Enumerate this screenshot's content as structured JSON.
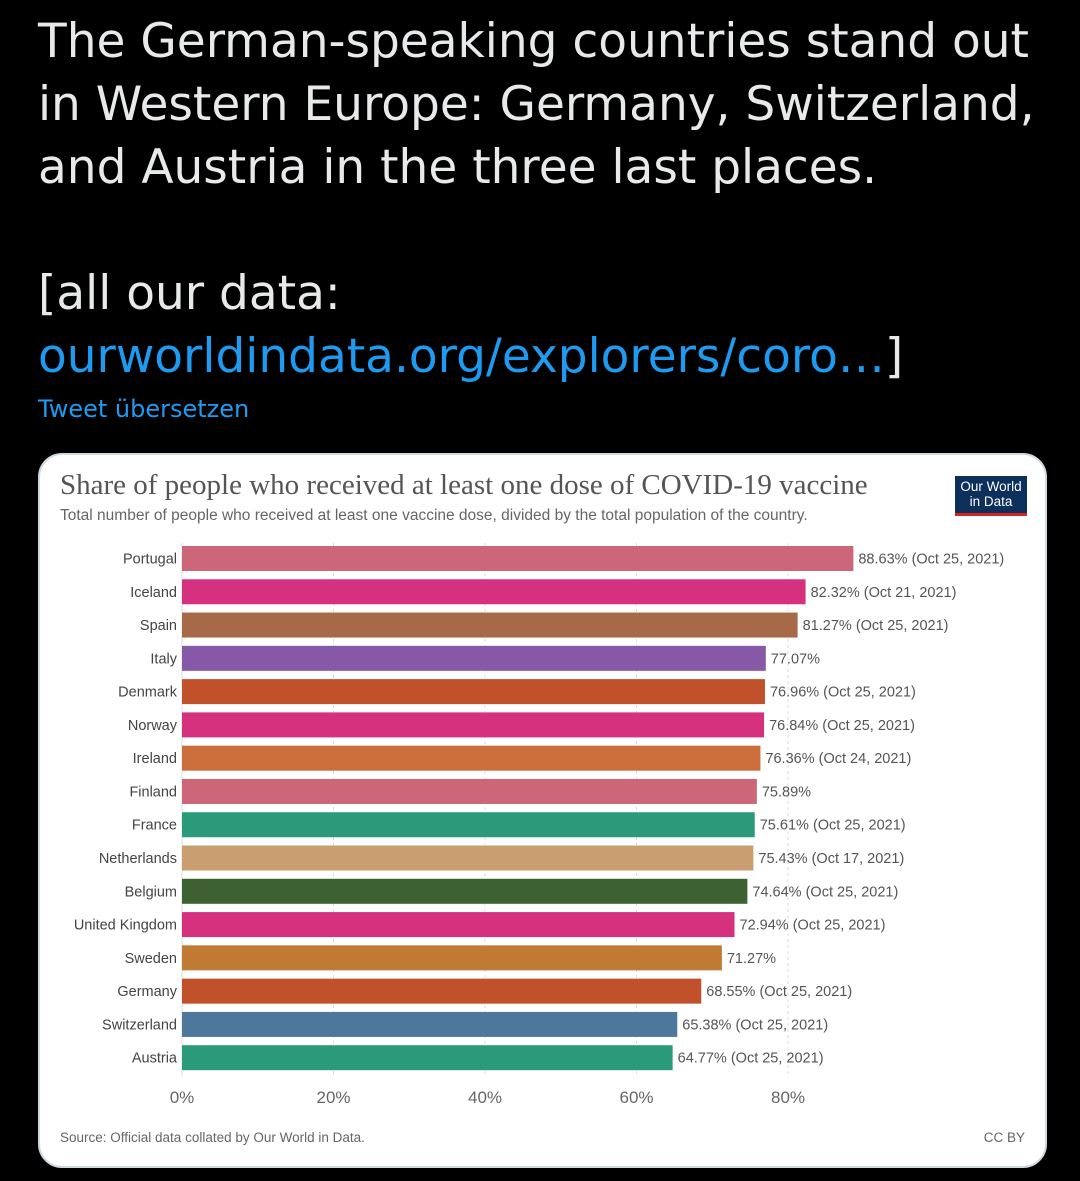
{
  "tweet": {
    "lines": [
      "The German-speaking countries stand out",
      "in Western Europe: Germany, Switzerland,",
      "and Austria in the three last places.",
      "[all our data:"
    ],
    "link_text": "ourworldindata.org/explorers/coro…",
    "link_suffix": "]",
    "translate_label": "Tweet übersetzen"
  },
  "card": {
    "logo_line1": "Our World",
    "logo_line2": "in Data",
    "source": "Source: Official data collated by Our World in Data.",
    "license": "CC BY"
  },
  "chart_data": {
    "type": "bar",
    "orientation": "horizontal",
    "title": "Share of people who received at least one dose of COVID-19 vaccine",
    "subtitle": "Total number of people who received at least one vaccine dose, divided by the total population of the country.",
    "xlim": [
      0,
      100
    ],
    "x_ticks": [
      "0%",
      "20%",
      "40%",
      "60%",
      "80%"
    ],
    "x_tick_values": [
      0,
      20,
      40,
      60,
      80
    ],
    "categories": [
      "Portugal",
      "Iceland",
      "Spain",
      "Italy",
      "Denmark",
      "Norway",
      "Ireland",
      "Finland",
      "France",
      "Netherlands",
      "Belgium",
      "United Kingdom",
      "Sweden",
      "Germany",
      "Switzerland",
      "Austria"
    ],
    "values": [
      88.63,
      82.32,
      81.27,
      77.07,
      76.96,
      76.84,
      76.36,
      75.89,
      75.61,
      75.43,
      74.64,
      72.94,
      71.27,
      68.55,
      65.38,
      64.77
    ],
    "labels": [
      "88.63% (Oct 25, 2021)",
      "82.32% (Oct 21, 2021)",
      "81.27% (Oct 25, 2021)",
      "77.07%",
      "76.96% (Oct 25, 2021)",
      "76.84% (Oct 25, 2021)",
      "76.36% (Oct 24, 2021)",
      "75.89%",
      "75.61% (Oct 25, 2021)",
      "75.43% (Oct 17, 2021)",
      "74.64% (Oct 25, 2021)",
      "72.94% (Oct 25, 2021)",
      "71.27%",
      "68.55% (Oct 25, 2021)",
      "65.38% (Oct 25, 2021)",
      "64.77% (Oct 25, 2021)"
    ],
    "colors": [
      "#cc6678",
      "#d6317e",
      "#a76a48",
      "#8559a6",
      "#c0512b",
      "#d6317e",
      "#cc6e3b",
      "#cc6678",
      "#2a9a7a",
      "#c99f72",
      "#3d6130",
      "#d6317e",
      "#c07a33",
      "#c0512b",
      "#4e779c",
      "#2a9a7a"
    ],
    "grid": true,
    "legend": "none"
  }
}
